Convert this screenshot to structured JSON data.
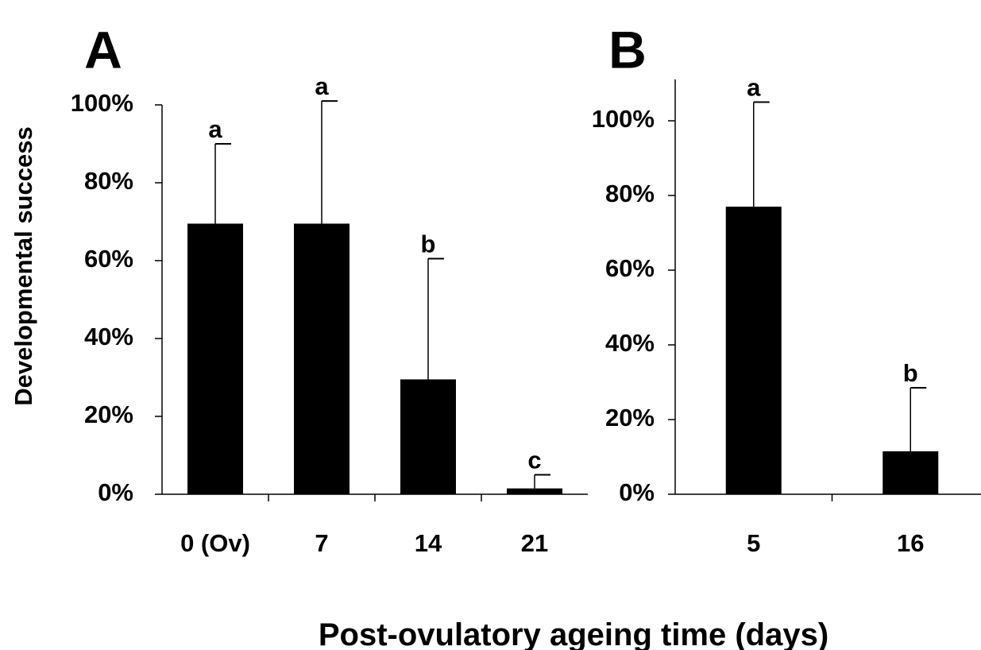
{
  "figure": {
    "ylabel": "Developmental success",
    "xlabel": "Post-ovulatory ageing time (days)"
  },
  "chart_data": [
    {
      "type": "bar",
      "panel_label": "A",
      "categories": [
        "0 (Ov)",
        "7",
        "14",
        "21"
      ],
      "values": [
        69.5,
        69.5,
        29.5,
        1.5
      ],
      "error_upper": [
        90,
        101,
        60.5,
        5
      ],
      "significance": [
        "a",
        "a",
        "b",
        "c"
      ],
      "ylim": [
        0,
        100
      ],
      "yticks": [
        0,
        20,
        40,
        60,
        80,
        100
      ],
      "ytick_labels": [
        "0%",
        "20%",
        "40%",
        "60%",
        "80%",
        "100%"
      ],
      "bar_color": "#000000",
      "grid": false
    },
    {
      "type": "bar",
      "panel_label": "B",
      "categories": [
        "5",
        "16"
      ],
      "values": [
        77,
        11.5
      ],
      "error_upper": [
        105,
        28.5
      ],
      "significance": [
        "a",
        "b"
      ],
      "ylim": [
        0,
        100
      ],
      "yticks": [
        0,
        20,
        40,
        60,
        80,
        100
      ],
      "ytick_labels": [
        "0%",
        "20%",
        "40%",
        "60%",
        "80%",
        "100%"
      ],
      "bar_color": "#000000",
      "grid": false
    }
  ]
}
